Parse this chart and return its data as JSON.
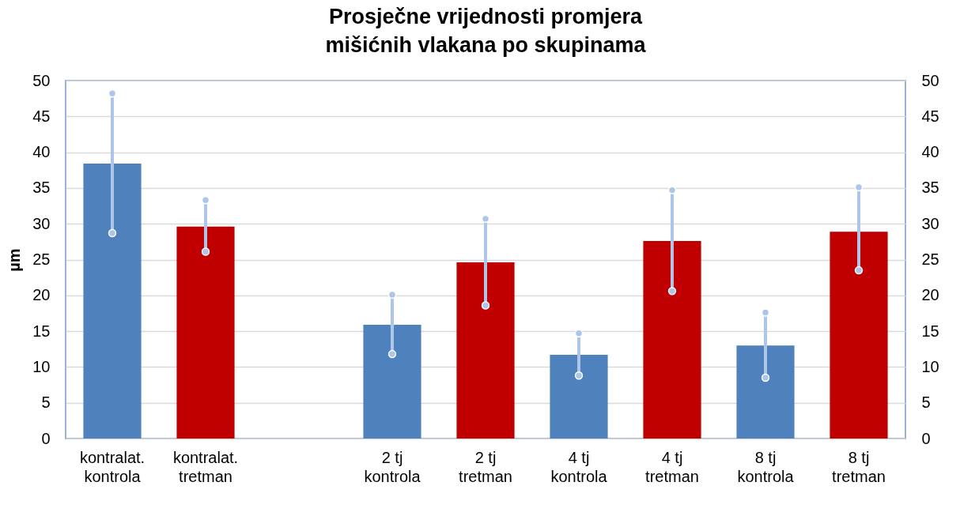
{
  "chart_data": {
    "type": "bar",
    "title": "Prosječne vrijednosti promjera mišićnih vlakana po skupinama",
    "ylabel": "µm",
    "categories": [
      "kontralat. kontrola",
      "kontralat. tretman",
      null,
      "2 tj kontrola",
      "2 tj tretman",
      "4 tj kontrola",
      "4 tj tretman",
      "8 tj kontrola",
      "8 tj tretman"
    ],
    "values": [
      38.4,
      29.6,
      null,
      15.9,
      24.6,
      11.7,
      27.6,
      13.0,
      28.9
    ],
    "colors": [
      "#4f81bd",
      "#c00000",
      "#4f81bd",
      "#4f81bd",
      "#c00000",
      "#4f81bd",
      "#c00000",
      "#4f81bd",
      "#c00000"
    ],
    "errors": [
      [
        28.7,
        48.2
      ],
      [
        26.1,
        33.3
      ],
      null,
      [
        11.8,
        20.1
      ],
      [
        18.6,
        30.7
      ],
      [
        8.8,
        14.7
      ],
      [
        20.6,
        34.7
      ],
      [
        8.5,
        17.6
      ],
      [
        23.5,
        35.1
      ]
    ],
    "ylim": [
      0,
      50
    ],
    "yticks": [
      0,
      5,
      10,
      15,
      20,
      25,
      30,
      35,
      40,
      45,
      50
    ],
    "y2lim": [
      0,
      50
    ],
    "y2ticks": [
      0,
      5,
      10,
      15,
      20,
      25,
      30,
      35,
      40,
      45,
      50
    ],
    "grid": "y"
  }
}
